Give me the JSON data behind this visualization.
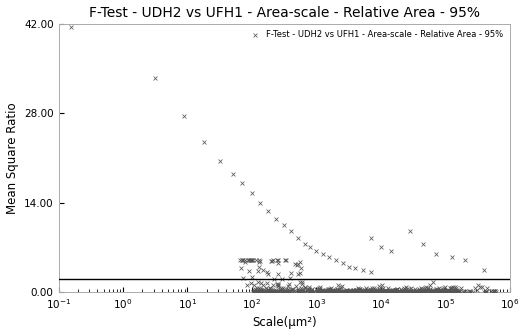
{
  "title": "F-Test - UDH2 vs UFH1 - Area-scale - Relative Area - 95%",
  "xlabel": "Scale(μm²)",
  "ylabel": "Mean Square Ratio",
  "legend_label": "F-Test - UDH2 vs UFH1 - Area-scale - Relative Area - 95%",
  "xlim_log": [
    -1,
    6
  ],
  "ylim": [
    0,
    42
  ],
  "yticks": [
    0.0,
    14.0,
    28.0,
    42.0
  ],
  "ytick_labels": [
    "0.00",
    "14.00",
    "28.00",
    "42.00"
  ],
  "hline_y": 2.0,
  "marker_color": "#555555",
  "hline_color": "#000000",
  "bg_color": "#ffffff",
  "title_fontsize": 10,
  "label_fontsize": 8.5,
  "tick_fontsize": 7.5,
  "sparse_log_x": [
    -0.8,
    0.5,
    0.95,
    1.25,
    1.5,
    1.7,
    1.85,
    2.0,
    2.12,
    2.25,
    2.38,
    2.5,
    2.6,
    2.72,
    2.82,
    2.9,
    3.0,
    3.1,
    3.2,
    3.3,
    3.42,
    3.5,
    3.6,
    3.72,
    3.85
  ],
  "sparse_y": [
    41.5,
    33.5,
    27.5,
    23.5,
    20.5,
    18.5,
    17.0,
    15.5,
    14.0,
    12.7,
    11.5,
    10.5,
    9.5,
    8.5,
    7.5,
    7.0,
    6.5,
    6.0,
    5.5,
    5.0,
    4.5,
    4.0,
    3.8,
    3.5,
    3.2
  ]
}
